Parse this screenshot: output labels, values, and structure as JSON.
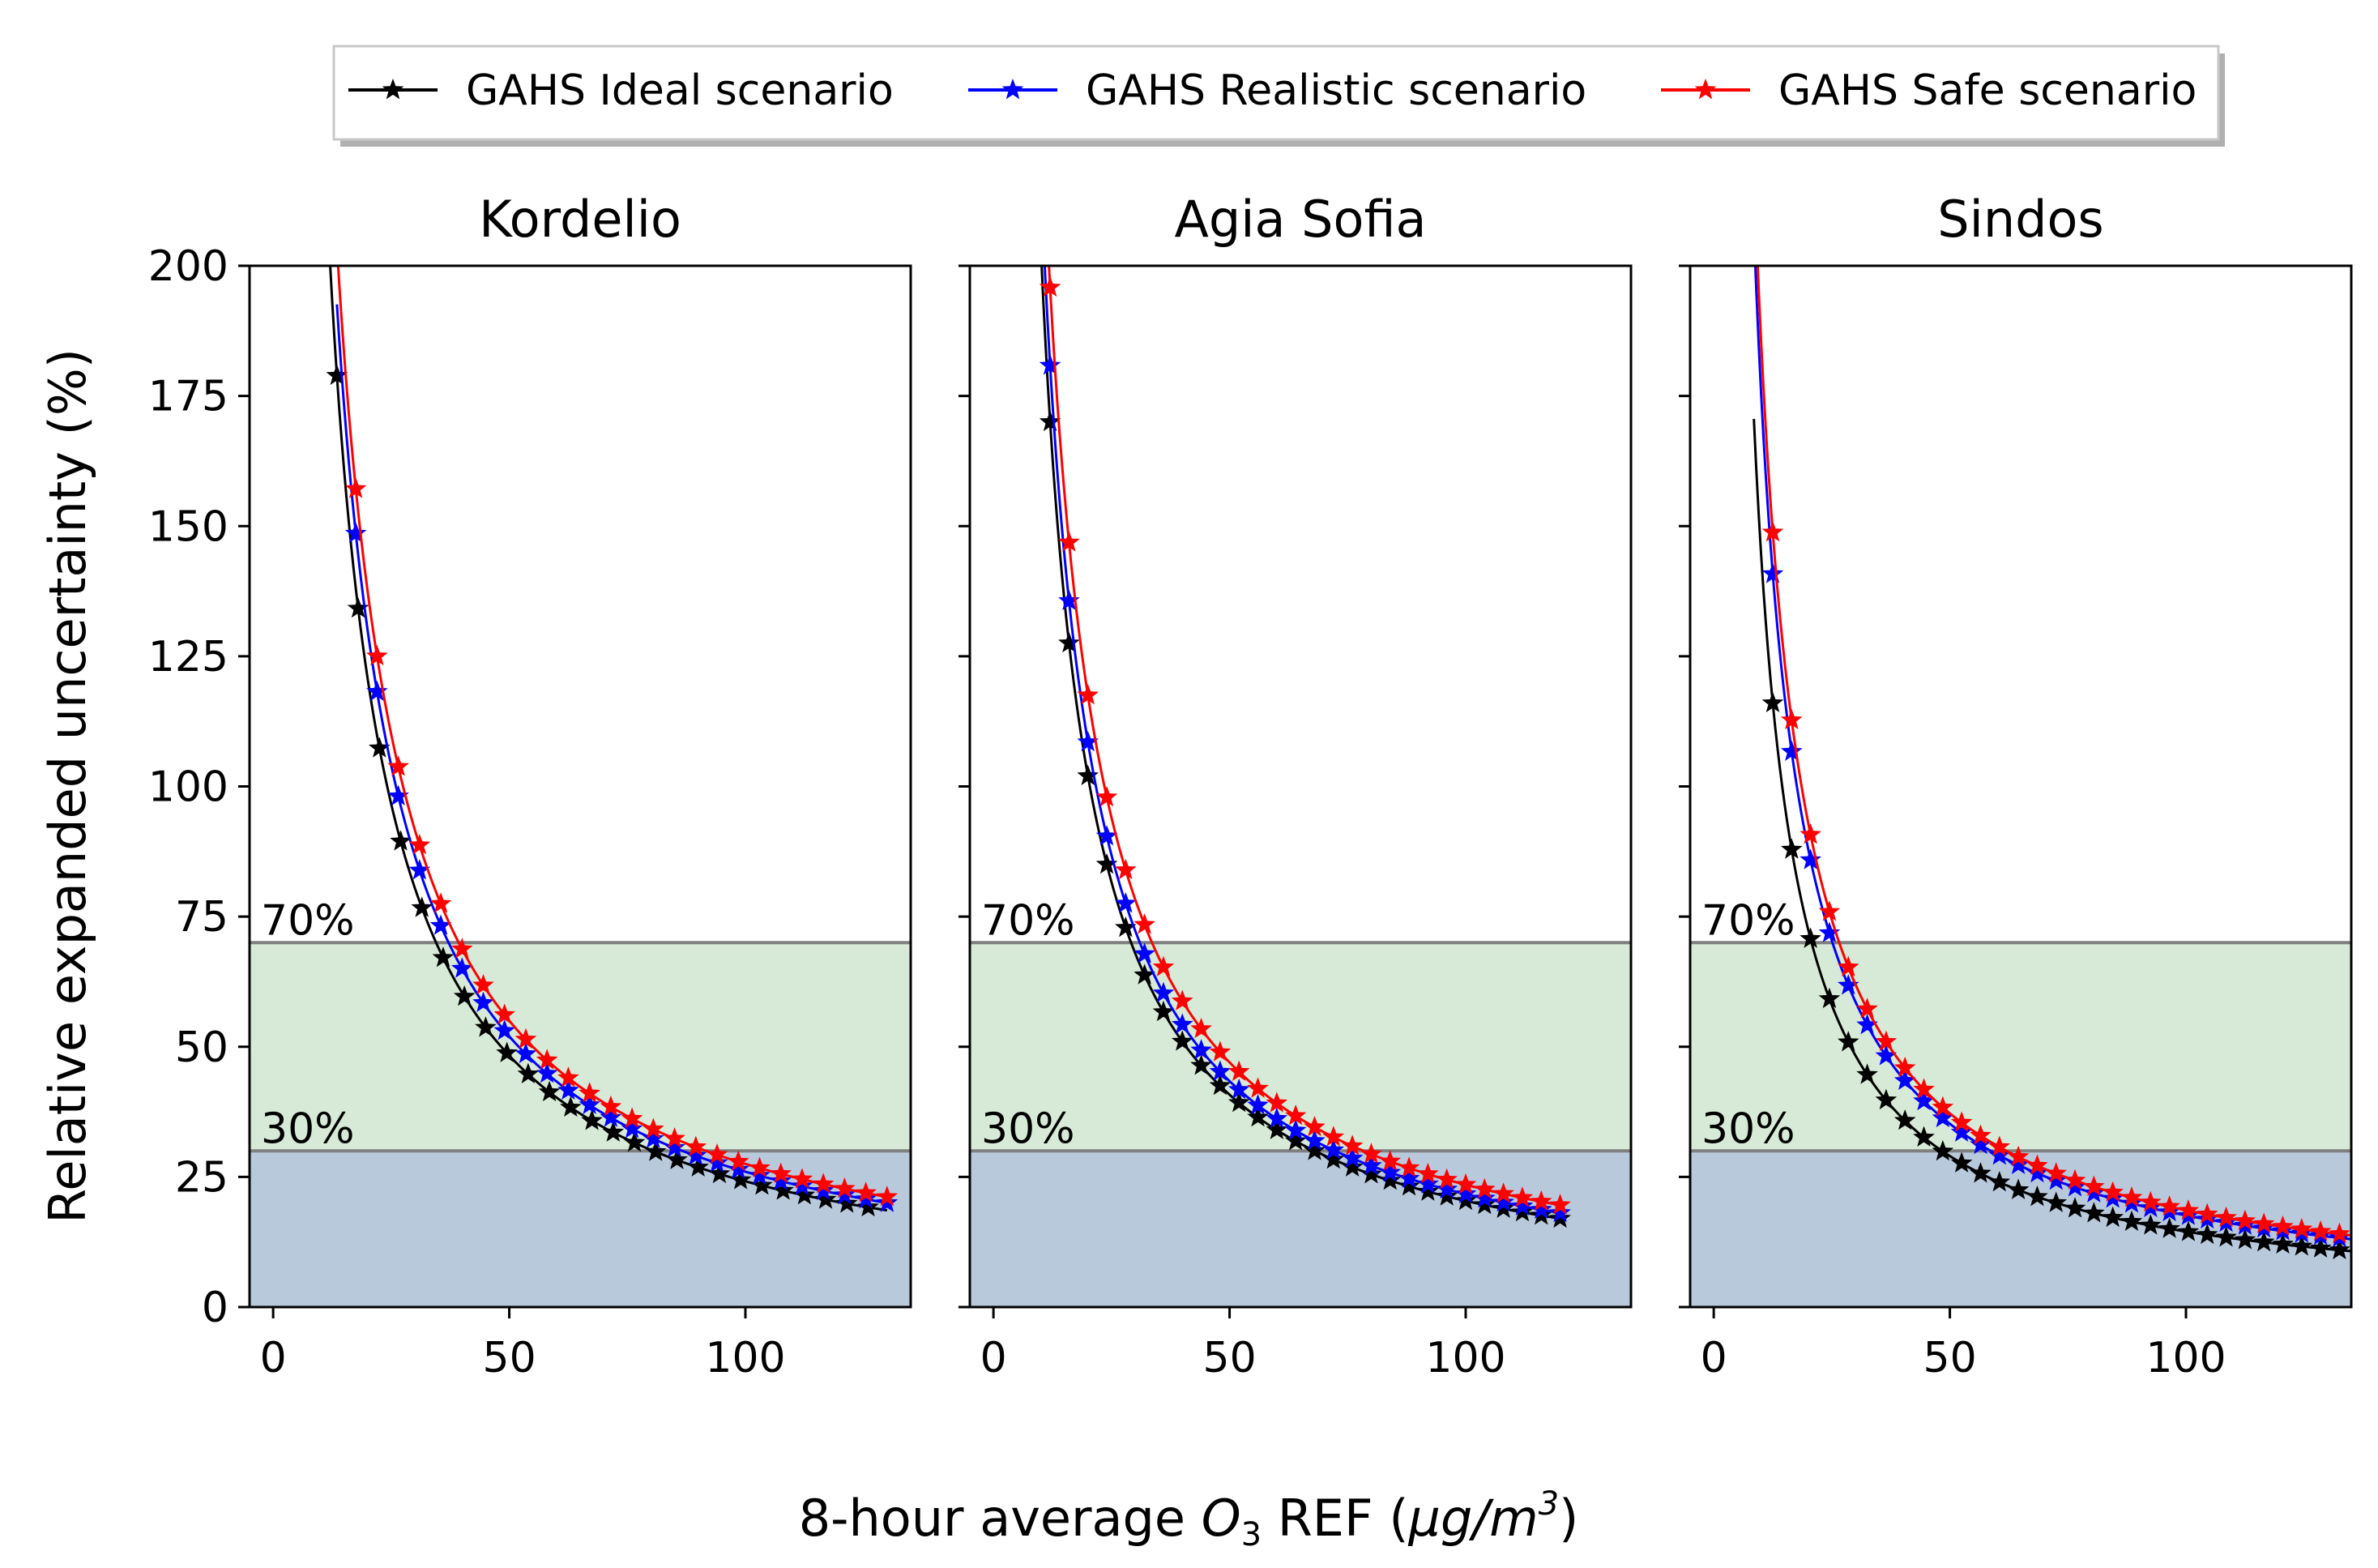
{
  "chart_data": {
    "type": "line",
    "ylabel": "Relative expanded uncertainty (%)",
    "xlabel": {
      "prefix": "8-hour average ",
      "species": "O",
      "species_sub": "3",
      "middle": " REF (",
      "unit_main": "μg/m",
      "unit_sup": "3",
      "suffix": ")"
    },
    "ylim": [
      0,
      200
    ],
    "yticks": [
      0,
      25,
      50,
      75,
      100,
      125,
      150,
      175,
      200
    ],
    "xticks": [
      0,
      50,
      100
    ],
    "bands": [
      {
        "from": 0,
        "to": 30,
        "color": "#b9c9dc",
        "label": "30%",
        "label_at": 30
      },
      {
        "from": 30,
        "to": 70,
        "color": "#d7ead7",
        "label": "70%",
        "label_at": 70
      }
    ],
    "band_line_color": "#7f7f7f",
    "legend": {
      "location": "top-center",
      "entries": [
        {
          "name": "GAHS Ideal scenario",
          "color": "#000000"
        },
        {
          "name": "GAHS Realistic scenario",
          "color": "#0000ff"
        },
        {
          "name": "GAHS Safe scenario",
          "color": "#ff0000"
        }
      ]
    },
    "panels": [
      {
        "title": "Kordelio",
        "xlim": [
          -5,
          135
        ],
        "series": [
          {
            "name": "GAHS Ideal scenario",
            "color": "#000000",
            "k": 2415,
            "x_start": 13.5,
            "x_end": 130,
            "step": 4.5
          },
          {
            "name": "GAHS Realistic scenario",
            "color": "#0000ff",
            "k": 2600,
            "x_start": 17.5,
            "x_end": 130,
            "step": 4.5
          },
          {
            "name": "GAHS Safe scenario",
            "color": "#ff0000",
            "k": 2750,
            "x_start": 17.5,
            "x_end": 130,
            "step": 4.5
          }
        ]
      },
      {
        "title": "Agia Sofia",
        "xlim": [
          -5,
          135
        ],
        "series": [
          {
            "name": "GAHS Ideal scenario",
            "color": "#000000",
            "k": 2040,
            "x_start": 12,
            "x_end": 120,
            "step": 4
          },
          {
            "name": "GAHS Realistic scenario",
            "color": "#0000ff",
            "k": 2170,
            "x_start": 12,
            "x_end": 120,
            "step": 4
          },
          {
            "name": "GAHS Safe scenario",
            "color": "#ff0000",
            "k": 2350,
            "x_start": 12,
            "x_end": 120,
            "step": 4
          }
        ]
      },
      {
        "title": "Sindos",
        "xlim": [
          -5,
          135
        ],
        "series": [
          {
            "name": "GAHS Ideal scenario",
            "color": "#000000",
            "k": 1450,
            "x_start": 12.5,
            "x_end": 135,
            "step": 4
          },
          {
            "name": "GAHS Realistic scenario",
            "color": "#0000ff",
            "k": 1760,
            "x_start": 12.5,
            "x_end": 135,
            "step": 4
          },
          {
            "name": "GAHS Safe scenario",
            "color": "#ff0000",
            "k": 1860,
            "x_start": 12.5,
            "x_end": 135,
            "step": 4
          }
        ]
      }
    ]
  }
}
